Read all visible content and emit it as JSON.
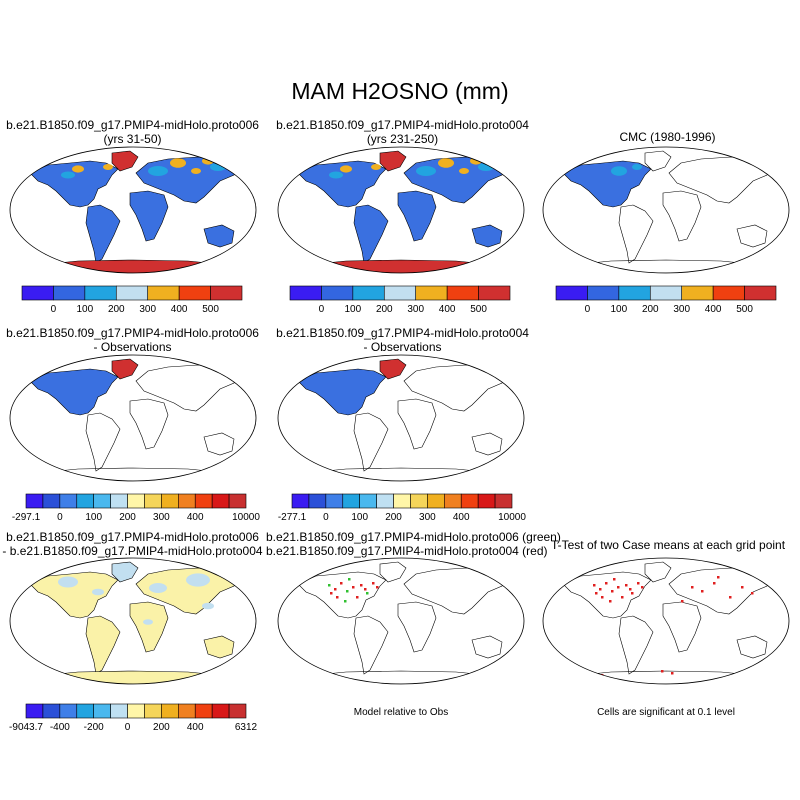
{
  "figure": {
    "title": "MAM H2OSNO (mm)"
  },
  "panels": {
    "p1": {
      "title1": "b.e21.B1850.f09_g17.PMIP4-midHolo.proto006",
      "title2": "(yrs 31-50)",
      "fill": "abs_case"
    },
    "p2": {
      "title1": "b.e21.B1850.f09_g17.PMIP4-midHolo.proto004",
      "title2": "(yrs 231-250)",
      "fill": "abs_case"
    },
    "p3": {
      "title1": "CMC (1980-1996)",
      "fill": "abs_obs"
    },
    "p4": {
      "title1": "b.e21.B1850.f09_g17.PMIP4-midHolo.proto006",
      "title2": "- Observations",
      "fill": "diff_obs"
    },
    "p5": {
      "title1": "b.e21.B1850.f09_g17.PMIP4-midHolo.proto004",
      "title2": "- Observations",
      "fill": "diff_obs"
    },
    "p6": {
      "title1": "b.e21.B1850.f09_g17.PMIP4-midHolo.proto006",
      "title2": "- b.e21.B1850.f09_g17.PMIP4-midHolo.proto004",
      "fill": "diff_case"
    },
    "p7": {
      "title1": "b.e21.B1850.f09_g17.PMIP4-midHolo.proto006 (green)",
      "title2": "b.e21.B1850.f09_g17.PMIP4-midHolo.proto004 (red)",
      "fill": "rel"
    },
    "p8": {
      "title1": "T-Test of two Case means at each grid point",
      "fill": "ttest"
    }
  },
  "notes": {
    "rel": "Model relative to Obs",
    "ttest": "Cells are significant at 0.1 level"
  },
  "chart_data": {
    "type": "heatmap",
    "colorbars": [
      {
        "id": "cb1",
        "colors": [
          "#3a1cf2",
          "#3366e0",
          "#22a4e0",
          "#c2dff0",
          "#f0b020",
          "#f04010",
          "#d03030"
        ],
        "labels": [
          "0",
          "100",
          "200",
          "300",
          "400",
          "500"
        ]
      },
      {
        "id": "cb2",
        "colors": [
          "#3a1cf2",
          "#3366e0",
          "#22a4e0",
          "#c2dff0",
          "#f0b020",
          "#f04010",
          "#d03030"
        ],
        "labels": [
          "0",
          "100",
          "200",
          "300",
          "400",
          "500"
        ]
      },
      {
        "id": "cb3",
        "colors": [
          "#3a1cf2",
          "#3366e0",
          "#22a4e0",
          "#c2dff0",
          "#f0b020",
          "#f04010",
          "#d03030"
        ],
        "labels": [
          "0",
          "100",
          "200",
          "300",
          "400",
          "500"
        ]
      },
      {
        "id": "cb4",
        "colors": [
          "#3a1cf2",
          "#2b50d8",
          "#3f7fe8",
          "#22a4e0",
          "#4ab8ee",
          "#bfe0f2",
          "#fff6a8",
          "#f5d55a",
          "#f0b020",
          "#f08020",
          "#f04010",
          "#d81818",
          "#c83030"
        ],
        "labels": [
          "-297.1",
          "0",
          "100",
          "200",
          "300",
          "400",
          "10000"
        ],
        "label_slots": [
          0,
          2,
          4,
          6,
          8,
          10,
          13
        ]
      },
      {
        "id": "cb5",
        "colors": [
          "#3a1cf2",
          "#2b50d8",
          "#3f7fe8",
          "#22a4e0",
          "#4ab8ee",
          "#bfe0f2",
          "#fff6a8",
          "#f5d55a",
          "#f0b020",
          "#f08020",
          "#f04010",
          "#d81818",
          "#c83030"
        ],
        "labels": [
          "-277.1",
          "0",
          "100",
          "200",
          "300",
          "400",
          "10000"
        ],
        "label_slots": [
          0,
          2,
          4,
          6,
          8,
          10,
          13
        ]
      },
      {
        "id": "cb6",
        "colors": [
          "#3a1cf2",
          "#2b50d8",
          "#3f7fe8",
          "#22a4e0",
          "#4ab8ee",
          "#bfe0f2",
          "#fff6a8",
          "#f5d55a",
          "#f0b020",
          "#f08020",
          "#f04010",
          "#d81818",
          "#c83030"
        ],
        "labels": [
          "-9043.7",
          "-400",
          "-200",
          "0",
          "200",
          "400",
          "6312"
        ],
        "label_slots": [
          0,
          2,
          4,
          6,
          8,
          10,
          13
        ]
      }
    ],
    "colors": {
      "snow_low": "#3a70e0",
      "snow_mid": "#22a4e0",
      "snow_light": "#c2dff0",
      "snow_high": "#f0b020",
      "snow_max": "#d03030",
      "diff_neg": "#3a70e0",
      "diff_zero": "#faf2a8",
      "diff_pos_light": "#c2dff0",
      "green_marker": "#30c030",
      "red_marker": "#e02020",
      "coast": "#000000"
    }
  }
}
